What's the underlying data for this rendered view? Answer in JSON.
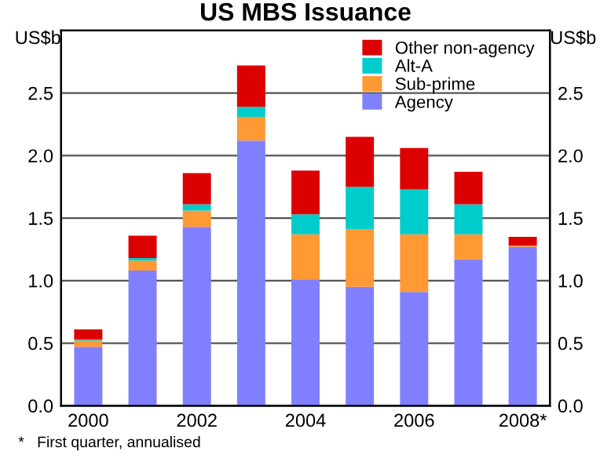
{
  "chart_data": {
    "type": "bar",
    "title": "US MBS Issuance",
    "ylabel": "US$b",
    "y2label": "US$b",
    "categories": [
      "2000",
      null,
      "2002",
      null,
      "2004",
      null,
      "2006",
      null,
      "2008*"
    ],
    "stacked": true,
    "series": [
      {
        "name": "Agency",
        "color": "#8080ff",
        "values": [
          0.47,
          1.08,
          1.43,
          2.12,
          1.01,
          0.95,
          0.91,
          1.17,
          1.27
        ]
      },
      {
        "name": "Sub-prime",
        "color": "#ff9933",
        "values": [
          0.05,
          0.08,
          0.13,
          0.19,
          0.36,
          0.46,
          0.46,
          0.2,
          0.01
        ]
      },
      {
        "name": "Alt-A",
        "color": "#00cccc",
        "values": [
          0.01,
          0.02,
          0.05,
          0.08,
          0.16,
          0.34,
          0.36,
          0.24,
          0.0
        ]
      },
      {
        "name": "Other non-agency",
        "color": "#dd0000",
        "values": [
          0.08,
          0.18,
          0.25,
          0.33,
          0.35,
          0.4,
          0.33,
          0.26,
          0.07
        ]
      }
    ],
    "ylim": [
      0,
      3.0
    ],
    "yticks": [
      {
        "value": 0,
        "label": "0.0"
      },
      {
        "value": 0.5,
        "label": "0.5"
      },
      {
        "value": 1.0,
        "label": "1.0"
      },
      {
        "value": 1.5,
        "label": "1.5"
      },
      {
        "value": 2.0,
        "label": "2.0"
      },
      {
        "value": 2.5,
        "label": "2.5"
      }
    ],
    "y2lim": [
      0,
      3.0
    ],
    "y2ticks": [
      {
        "value": 0,
        "label": "0.0"
      },
      {
        "value": 0.5,
        "label": "0.5"
      },
      {
        "value": 1.0,
        "label": "1.0"
      },
      {
        "value": 1.5,
        "label": "1.5"
      },
      {
        "value": 2.0,
        "label": "2.0"
      },
      {
        "value": 2.5,
        "label": "2.5"
      }
    ],
    "grid": "y",
    "legend": "top right",
    "annotations": [
      "*   First quarter, annualised"
    ]
  }
}
